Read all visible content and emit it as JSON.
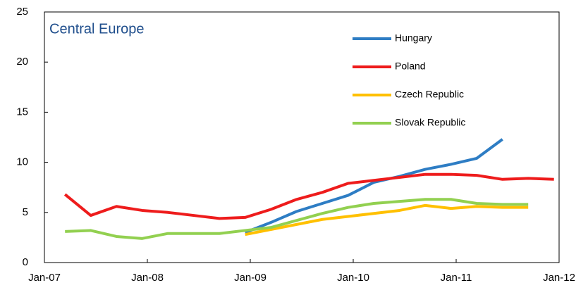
{
  "chart_data": {
    "type": "line",
    "title": "Central Europe",
    "x": [
      2007.2,
      2007.45,
      2007.7,
      2007.95,
      2008.2,
      2008.45,
      2008.7,
      2008.95,
      2009.2,
      2009.45,
      2009.7,
      2009.95,
      2010.2,
      2010.45,
      2010.7,
      2010.95,
      2011.2,
      2011.45,
      2011.7,
      2011.95
    ],
    "series": [
      {
        "name": "Hungary",
        "color": "#2e7dc4",
        "values": [
          null,
          null,
          null,
          null,
          null,
          null,
          null,
          3.0,
          4.0,
          5.1,
          5.9,
          6.7,
          8.0,
          8.6,
          9.3,
          9.8,
          10.4,
          12.3,
          null,
          null
        ]
      },
      {
        "name": "Poland",
        "color": "#ee1c1c",
        "values": [
          6.8,
          4.7,
          5.6,
          5.2,
          5.0,
          4.7,
          4.4,
          4.5,
          5.3,
          6.3,
          7.0,
          7.9,
          8.2,
          8.5,
          8.8,
          8.8,
          8.7,
          8.3,
          8.4,
          8.3
        ]
      },
      {
        "name": "Czech Republic",
        "color": "#ffc000",
        "values": [
          null,
          null,
          null,
          null,
          null,
          null,
          null,
          2.8,
          3.3,
          3.8,
          4.3,
          4.6,
          4.9,
          5.2,
          5.7,
          5.4,
          5.6,
          5.5,
          5.5,
          null
        ]
      },
      {
        "name": "Slovak Republic",
        "color": "#92d050",
        "values": [
          3.1,
          3.2,
          2.6,
          2.4,
          2.9,
          2.9,
          2.9,
          3.2,
          3.5,
          4.2,
          4.9,
          5.5,
          5.9,
          6.1,
          6.3,
          6.3,
          5.9,
          5.8,
          5.8,
          null
        ]
      }
    ],
    "xlim": [
      2007,
      2012
    ],
    "xticks": [
      {
        "value": 2007,
        "label": "Jan-07"
      },
      {
        "value": 2008,
        "label": "Jan-08"
      },
      {
        "value": 2009,
        "label": "Jan-09"
      },
      {
        "value": 2010,
        "label": "Jan-10"
      },
      {
        "value": 2011,
        "label": "Jan-11"
      },
      {
        "value": 2012,
        "label": "Jan-12"
      }
    ],
    "ylim": [
      0,
      25
    ],
    "yticks": [
      0,
      5,
      10,
      15,
      20,
      25
    ],
    "grid": false
  }
}
